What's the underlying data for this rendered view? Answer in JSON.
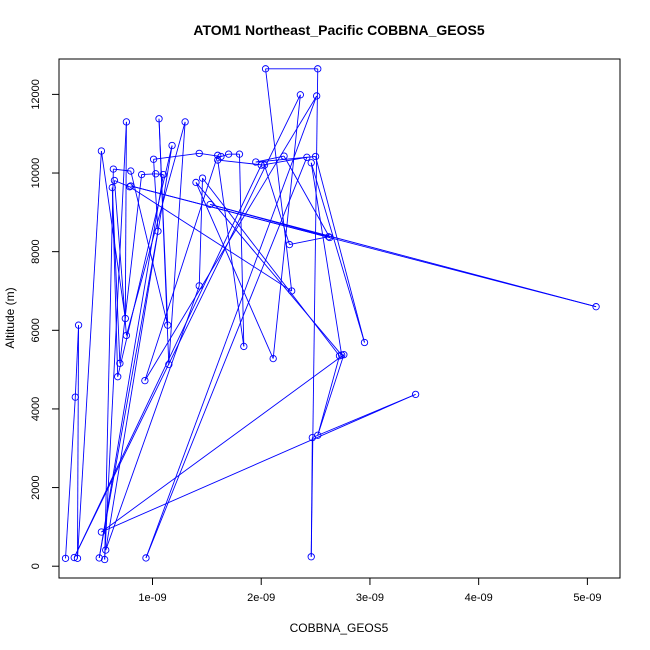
{
  "chart_data": {
    "type": "line",
    "title": "ATOM1 Northeast_Pacific COBBNA_GEOS5",
    "xlabel": "COBBNA_GEOS5",
    "ylabel": "Altitude (m)",
    "xlim": [
      1.4e-10,
      5.3e-09
    ],
    "ylim": [
      -300,
      12900
    ],
    "x_ticks": [
      1e-09,
      2e-09,
      3e-09,
      4e-09,
      5e-09
    ],
    "x_tick_labels": [
      "1e-09",
      "2e-09",
      "3e-09",
      "4e-09",
      "5e-09"
    ],
    "y_ticks": [
      0,
      2000,
      4000,
      6000,
      8000,
      10000,
      12000
    ],
    "y_tick_labels": [
      "0",
      "2000",
      "4000",
      "6000",
      "8000",
      "10000",
      "12000"
    ],
    "grid": false,
    "line_color": "#0000ff",
    "marker": "open-circle",
    "series": [
      {
        "points": [
          [
            2e-10,
            200
          ],
          [
            2.9e-10,
            4300
          ],
          [
            3.2e-10,
            6130
          ],
          [
            3.1e-10,
            200
          ],
          [
            5.3e-10,
            10560
          ],
          [
            7.5e-10,
            6300
          ],
          [
            7.6e-10,
            11300
          ],
          [
            5.6e-10,
            170
          ],
          [
            6.4e-10,
            10100
          ],
          [
            8e-10,
            10050
          ],
          [
            1.14e-09,
            6130
          ],
          [
            1.06e-09,
            11380
          ],
          [
            1.15e-09,
            5130
          ],
          [
            1.3e-09,
            11300
          ],
          [
            7.6e-10,
            5870
          ],
          [
            6.5e-10,
            9810
          ],
          [
            7.9e-10,
            9650
          ],
          [
            2.28e-09,
            7000
          ],
          [
            2.04e-09,
            12650
          ],
          [
            2.52e-09,
            12650
          ],
          [
            2.46e-09,
            240
          ],
          [
            2.47e-09,
            3270
          ],
          [
            3.42e-09,
            4370
          ],
          [
            5.3e-10,
            870
          ],
          [
            2.76e-09,
            5380
          ],
          [
            2.52e-09,
            3330
          ],
          [
            2.72e-09,
            5350
          ],
          [
            1.46e-09,
            9870
          ],
          [
            1.43e-09,
            7130
          ],
          [
            5.7e-10,
            410
          ],
          [
            1.18e-09,
            10700
          ],
          [
            6.8e-10,
            4820
          ],
          [
            6.3e-10,
            9630
          ],
          [
            7e-10,
            5160
          ],
          [
            9e-10,
            9960
          ],
          [
            1.03e-09,
            9980
          ],
          [
            1.1e-09,
            9960
          ],
          [
            5.1e-10,
            210
          ],
          [
            1.05e-09,
            8520
          ],
          [
            1.01e-09,
            10350
          ],
          [
            1.43e-09,
            10500
          ],
          [
            1.63e-09,
            10420
          ],
          [
            1.7e-09,
            10480
          ],
          [
            1.8e-09,
            10480
          ],
          [
            1.84e-09,
            5590
          ],
          [
            1.6e-09,
            10330
          ],
          [
            2.03e-09,
            10200
          ],
          [
            2.26e-09,
            8180
          ],
          [
            2.62e-09,
            8380
          ],
          [
            1.53e-09,
            9200
          ],
          [
            5.08e-09,
            6600
          ],
          [
            8e-10,
            9670
          ],
          [
            2.63e-09,
            8360
          ],
          [
            2.21e-09,
            10430
          ],
          [
            1.95e-09,
            10280
          ],
          [
            2.5e-09,
            10420
          ],
          [
            2.95e-09,
            5690
          ],
          [
            2.46e-09,
            10260
          ],
          [
            2.74e-09,
            5370
          ],
          [
            1.4e-09,
            9760
          ],
          [
            2.11e-09,
            5280
          ],
          [
            2.36e-09,
            11990
          ],
          [
            2.8e-10,
            220
          ],
          [
            2e-09,
            10200
          ],
          [
            2.42e-09,
            10400
          ],
          [
            9.4e-10,
            210
          ],
          [
            2.51e-09,
            11960
          ],
          [
            9.3e-10,
            4720
          ],
          [
            1.6e-09,
            10450
          ]
        ]
      }
    ]
  }
}
